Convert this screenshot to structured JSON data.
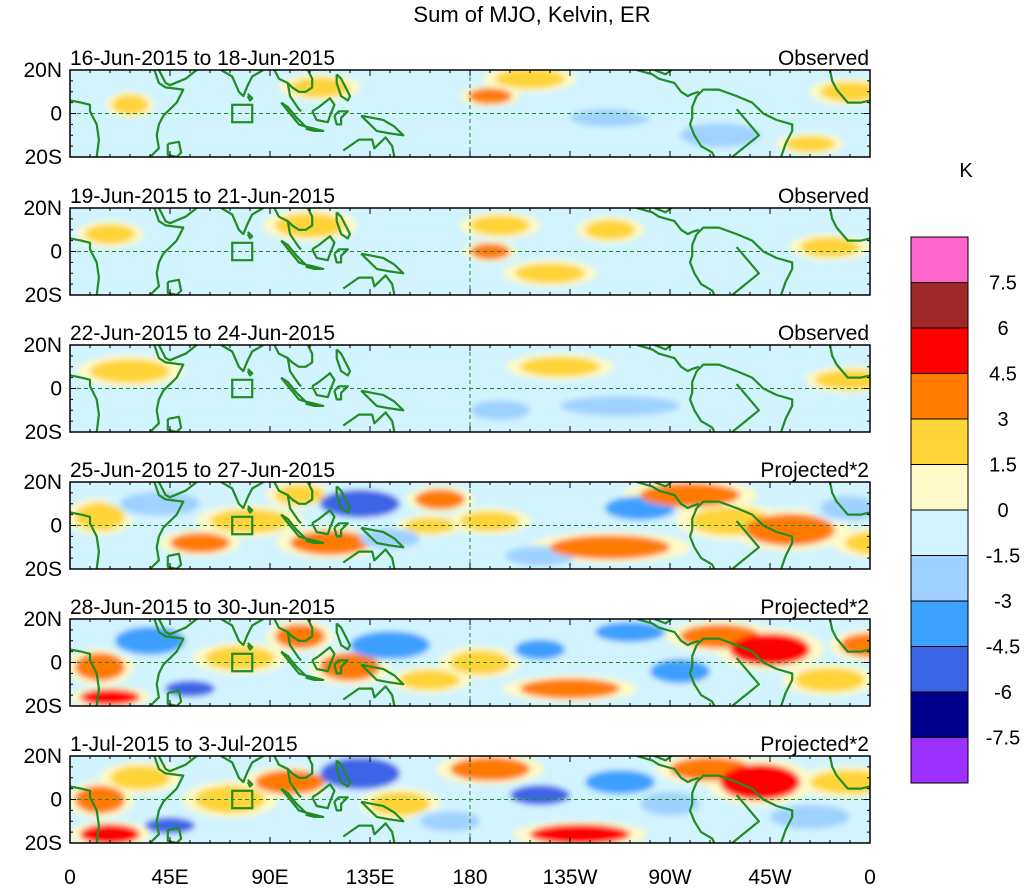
{
  "title": "Sum of MJO, Kelvin, ER",
  "units": "K",
  "lat_labels": [
    "20N",
    "0",
    "20S"
  ],
  "lon_labels": [
    "0",
    "45E",
    "90E",
    "135E",
    "180",
    "135W",
    "90W",
    "45W",
    "0"
  ],
  "panels": [
    {
      "date_range": "16-Jun-2015 to 18-Jun-2015",
      "kind": "Observed"
    },
    {
      "date_range": "19-Jun-2015 to 21-Jun-2015",
      "kind": "Observed"
    },
    {
      "date_range": "22-Jun-2015 to 24-Jun-2015",
      "kind": "Observed"
    },
    {
      "date_range": "25-Jun-2015 to 27-Jun-2015",
      "kind": "Projected*2"
    },
    {
      "date_range": "28-Jun-2015 to 30-Jun-2015",
      "kind": "Projected*2"
    },
    {
      "date_range": "1-Jul-2015 to 3-Jul-2015",
      "kind": "Projected*2"
    }
  ],
  "colorbar": {
    "labels": [
      "7.5",
      "6",
      "4.5",
      "3",
      "1.5",
      "0",
      "-1.5",
      "-3",
      "-4.5",
      "-6",
      "-7.5"
    ],
    "colors": [
      "#ff66cc",
      "#a02828",
      "#ff0000",
      "#ff7a00",
      "#ffd438",
      "#fffac8",
      "#d2f4ff",
      "#a0d2ff",
      "#3ca0ff",
      "#3c64e6",
      "#00008c",
      "#9b30ff"
    ]
  },
  "colors": {
    "coast": "#228b22",
    "grid": "#228b22",
    "land": "#8ca08c"
  }
}
